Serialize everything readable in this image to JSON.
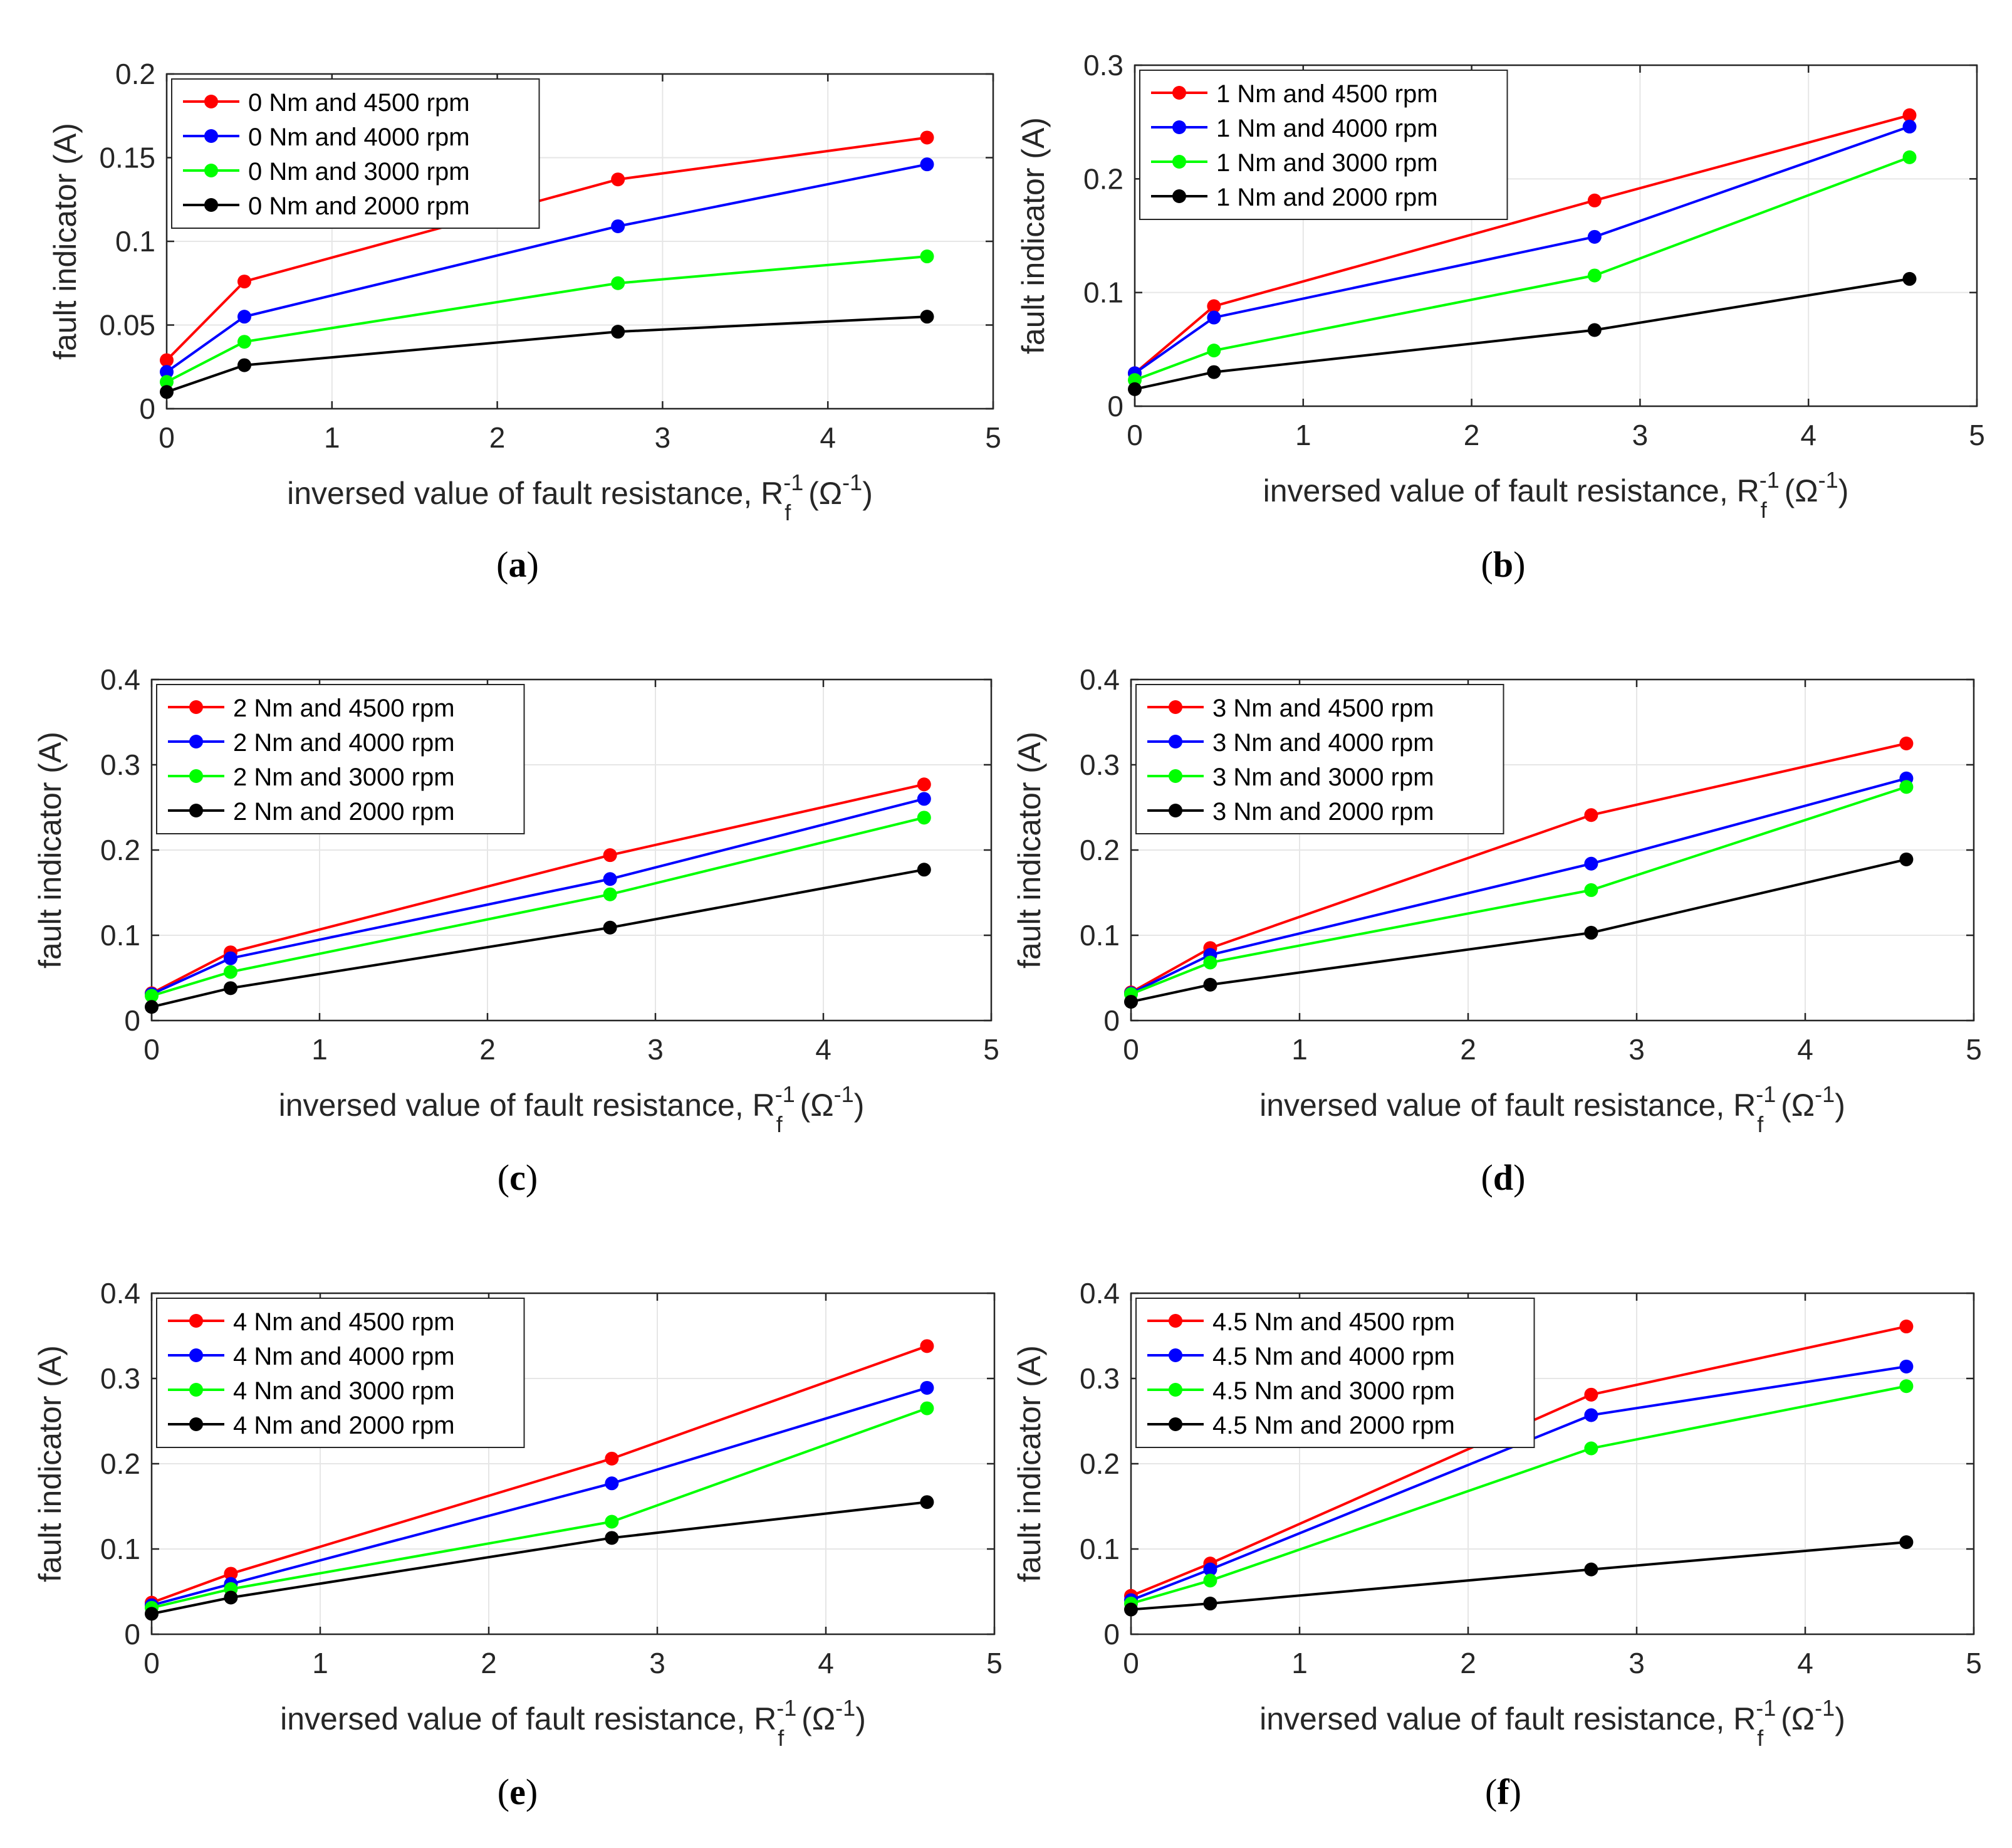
{
  "chart_data": [
    {
      "type": "line",
      "panel": "a",
      "caption": "(a)",
      "caption_letter": "a",
      "ylabel": "fault indicator (A)",
      "xlabel": "inversed value of fault resistance, R",
      "xlabel_sub": "f",
      "xlabel_sup": "-1",
      "xlabel_unit_open": " (Ω",
      "xlabel_unit_sup": "-1",
      "xlabel_unit_close": ")",
      "x": [
        0,
        0.47,
        2.73,
        4.6
      ],
      "xlim": [
        0,
        5
      ],
      "ylim": [
        0,
        0.2
      ],
      "xticks": [
        0,
        1,
        2,
        3,
        4,
        5
      ],
      "xtick_labels": [
        "0",
        "1",
        "2",
        "3",
        "4",
        "5"
      ],
      "yticks": [
        0,
        0.05,
        0.1,
        0.15,
        0.2
      ],
      "ytick_labels": [
        "0",
        "0.05",
        "0.1",
        "0.15",
        "0.2"
      ],
      "grid": true,
      "legend_position": "top-left",
      "series": [
        {
          "name": "0 Nm and 4500 rpm",
          "color": "#ff0000",
          "values": [
            0.029,
            0.076,
            0.137,
            0.162
          ]
        },
        {
          "name": "0 Nm and 4000 rpm",
          "color": "#0000ff",
          "values": [
            0.022,
            0.055,
            0.109,
            0.146
          ]
        },
        {
          "name": "0 Nm and 3000 rpm",
          "color": "#00ff00",
          "values": [
            0.016,
            0.04,
            0.075,
            0.091
          ]
        },
        {
          "name": "0 Nm and 2000 rpm",
          "color": "#000000",
          "values": [
            0.01,
            0.026,
            0.046,
            0.055
          ]
        }
      ]
    },
    {
      "type": "line",
      "panel": "b",
      "caption": "(b)",
      "caption_letter": "b",
      "ylabel": "fault indicator (A)",
      "xlabel": "inversed value of fault resistance, R",
      "xlabel_sub": "f",
      "xlabel_sup": "-1",
      "xlabel_unit_open": " (Ω",
      "xlabel_unit_sup": "-1",
      "xlabel_unit_close": ")",
      "x": [
        0,
        0.47,
        2.73,
        4.6
      ],
      "xlim": [
        0,
        5
      ],
      "ylim": [
        0,
        0.3
      ],
      "xticks": [
        0,
        1,
        2,
        3,
        4,
        5
      ],
      "xtick_labels": [
        "0",
        "1",
        "2",
        "3",
        "4",
        "5"
      ],
      "yticks": [
        0,
        0.1,
        0.2,
        0.3
      ],
      "ytick_labels": [
        "0",
        "0.1",
        "0.2",
        "0.3"
      ],
      "grid": true,
      "legend_position": "top-left",
      "series": [
        {
          "name": "1 Nm and 4500 rpm",
          "color": "#ff0000",
          "values": [
            0.029,
            0.088,
            0.181,
            0.256
          ]
        },
        {
          "name": "1 Nm and 4000 rpm",
          "color": "#0000ff",
          "values": [
            0.029,
            0.078,
            0.149,
            0.246
          ]
        },
        {
          "name": "1 Nm and 3000 rpm",
          "color": "#00ff00",
          "values": [
            0.023,
            0.049,
            0.115,
            0.219
          ]
        },
        {
          "name": "1 Nm and 2000 rpm",
          "color": "#000000",
          "values": [
            0.015,
            0.03,
            0.067,
            0.112
          ]
        }
      ]
    },
    {
      "type": "line",
      "panel": "c",
      "caption": "(c)",
      "caption_letter": "c",
      "ylabel": "fault indicator (A)",
      "xlabel": "inversed value of fault resistance, R",
      "xlabel_sub": "f",
      "xlabel_sup": "-1",
      "xlabel_unit_open": " (Ω",
      "xlabel_unit_sup": "-1",
      "xlabel_unit_close": ")",
      "x": [
        0,
        0.47,
        2.73,
        4.6
      ],
      "xlim": [
        0,
        5
      ],
      "ylim": [
        0,
        0.4
      ],
      "xticks": [
        0,
        1,
        2,
        3,
        4,
        5
      ],
      "xtick_labels": [
        "0",
        "1",
        "2",
        "3",
        "4",
        "5"
      ],
      "yticks": [
        0,
        0.1,
        0.2,
        0.3,
        0.4
      ],
      "ytick_labels": [
        "0",
        "0.1",
        "0.2",
        "0.3",
        "0.4"
      ],
      "grid": true,
      "legend_position": "top-left",
      "series": [
        {
          "name": "2 Nm and 4500 rpm",
          "color": "#ff0000",
          "values": [
            0.032,
            0.08,
            0.194,
            0.277
          ]
        },
        {
          "name": "2 Nm and 4000 rpm",
          "color": "#0000ff",
          "values": [
            0.031,
            0.073,
            0.166,
            0.26
          ]
        },
        {
          "name": "2 Nm and 3000 rpm",
          "color": "#00ff00",
          "values": [
            0.029,
            0.057,
            0.148,
            0.238
          ]
        },
        {
          "name": "2 Nm and 2000 rpm",
          "color": "#000000",
          "values": [
            0.016,
            0.038,
            0.109,
            0.177
          ]
        }
      ]
    },
    {
      "type": "line",
      "panel": "d",
      "caption": "(d)",
      "caption_letter": "d",
      "ylabel": "fault indicator (A)",
      "xlabel": "inversed value of fault resistance, R",
      "xlabel_sub": "f",
      "xlabel_sup": "-1",
      "xlabel_unit_open": " (Ω",
      "xlabel_unit_sup": "-1",
      "xlabel_unit_close": ")",
      "x": [
        0,
        0.47,
        2.73,
        4.6
      ],
      "xlim": [
        0,
        5
      ],
      "ylim": [
        0,
        0.4
      ],
      "xticks": [
        0,
        1,
        2,
        3,
        4,
        5
      ],
      "xtick_labels": [
        "0",
        "1",
        "2",
        "3",
        "4",
        "5"
      ],
      "yticks": [
        0,
        0.1,
        0.2,
        0.3,
        0.4
      ],
      "ytick_labels": [
        "0",
        "0.1",
        "0.2",
        "0.3",
        "0.4"
      ],
      "grid": true,
      "legend_position": "top-left",
      "series": [
        {
          "name": "3 Nm and 4500 rpm",
          "color": "#ff0000",
          "values": [
            0.033,
            0.085,
            0.241,
            0.325
          ]
        },
        {
          "name": "3 Nm and 4000 rpm",
          "color": "#0000ff",
          "values": [
            0.032,
            0.077,
            0.184,
            0.284
          ]
        },
        {
          "name": "3 Nm and 3000 rpm",
          "color": "#00ff00",
          "values": [
            0.031,
            0.068,
            0.153,
            0.274
          ]
        },
        {
          "name": "3 Nm and 2000 rpm",
          "color": "#000000",
          "values": [
            0.022,
            0.042,
            0.103,
            0.189
          ]
        }
      ]
    },
    {
      "type": "line",
      "panel": "e",
      "caption": "(e)",
      "caption_letter": "e",
      "ylabel": "fault indicator (A)",
      "xlabel": "inversed value of fault resistance, R",
      "xlabel_sub": "f",
      "xlabel_sup": "-1",
      "xlabel_unit_open": " (Ω",
      "xlabel_unit_sup": "-1",
      "xlabel_unit_close": ")",
      "x": [
        0,
        0.47,
        2.73,
        4.6
      ],
      "xlim": [
        0,
        5
      ],
      "ylim": [
        0,
        0.4
      ],
      "xticks": [
        0,
        1,
        2,
        3,
        4,
        5
      ],
      "xtick_labels": [
        "0",
        "1",
        "2",
        "3",
        "4",
        "5"
      ],
      "yticks": [
        0,
        0.1,
        0.2,
        0.3,
        0.4
      ],
      "ytick_labels": [
        "0",
        "0.1",
        "0.2",
        "0.3",
        "0.4"
      ],
      "grid": true,
      "legend_position": "top-left",
      "series": [
        {
          "name": "4 Nm and 4500 rpm",
          "color": "#ff0000",
          "values": [
            0.037,
            0.071,
            0.206,
            0.338
          ]
        },
        {
          "name": "4 Nm and 4000 rpm",
          "color": "#0000ff",
          "values": [
            0.034,
            0.059,
            0.177,
            0.289
          ]
        },
        {
          "name": "4 Nm and 3000 rpm",
          "color": "#00ff00",
          "values": [
            0.031,
            0.053,
            0.132,
            0.265
          ]
        },
        {
          "name": "4 Nm and 2000 rpm",
          "color": "#000000",
          "values": [
            0.024,
            0.043,
            0.113,
            0.155
          ]
        }
      ]
    },
    {
      "type": "line",
      "panel": "f",
      "caption": "(f)",
      "caption_letter": "f",
      "ylabel": "fault indicator (A)",
      "xlabel": "inversed value of fault resistance, R",
      "xlabel_sub": "f",
      "xlabel_sup": "-1",
      "xlabel_unit_open": " (Ω",
      "xlabel_unit_sup": "-1",
      "xlabel_unit_close": ")",
      "x": [
        0,
        0.47,
        2.73,
        4.6
      ],
      "xlim": [
        0,
        5
      ],
      "ylim": [
        0,
        0.4
      ],
      "xticks": [
        0,
        1,
        2,
        3,
        4,
        5
      ],
      "xtick_labels": [
        "0",
        "1",
        "2",
        "3",
        "4",
        "5"
      ],
      "yticks": [
        0,
        0.1,
        0.2,
        0.3,
        0.4
      ],
      "ytick_labels": [
        "0",
        "0.1",
        "0.2",
        "0.3",
        "0.4"
      ],
      "grid": true,
      "legend_position": "top-left",
      "series": [
        {
          "name": "4.5 Nm and 4500 rpm",
          "color": "#ff0000",
          "values": [
            0.045,
            0.083,
            0.281,
            0.361
          ]
        },
        {
          "name": "4.5 Nm and 4000 rpm",
          "color": "#0000ff",
          "values": [
            0.04,
            0.076,
            0.257,
            0.314
          ]
        },
        {
          "name": "4.5 Nm and 3000 rpm",
          "color": "#00ff00",
          "values": [
            0.036,
            0.063,
            0.218,
            0.291
          ]
        },
        {
          "name": "4.5 Nm and 2000 rpm",
          "color": "#000000",
          "values": [
            0.029,
            0.036,
            0.076,
            0.108
          ]
        }
      ]
    }
  ]
}
